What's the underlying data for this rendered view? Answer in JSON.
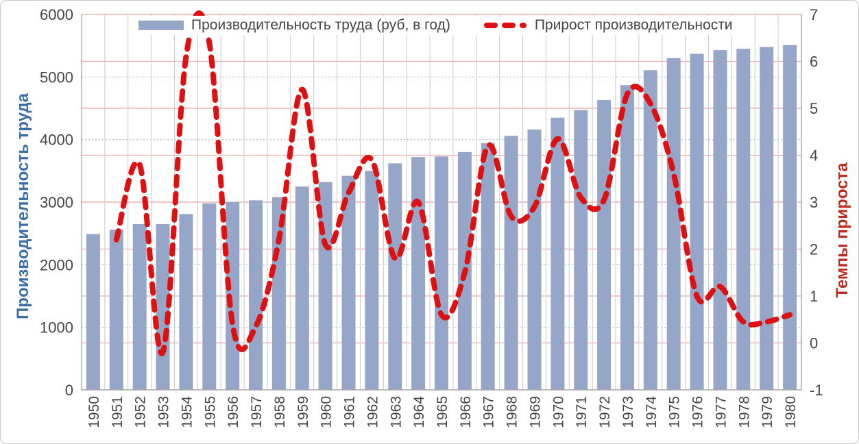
{
  "window": {
    "background": "#FFFFFF",
    "border_color": "#C9C9C9"
  },
  "chart_data": {
    "type": "combo-bar-line",
    "title": "",
    "categories": [
      "1950",
      "1951",
      "1952",
      "1953",
      "1954",
      "1955",
      "1956",
      "1957",
      "1958",
      "1959",
      "1960",
      "1961",
      "1962",
      "1963",
      "1964",
      "1965",
      "1966",
      "1967",
      "1968",
      "1969",
      "1970",
      "1971",
      "1972",
      "1973",
      "1974",
      "1975",
      "1976",
      "1977",
      "1978",
      "1979",
      "1980"
    ],
    "series": [
      {
        "name": "Производительность труда (руб, в год)",
        "type": "bar",
        "axis": "left",
        "color": "#96A6C8",
        "values": [
          2490,
          2560,
          2650,
          2650,
          2810,
          2980,
          3000,
          3030,
          3080,
          3250,
          3320,
          3420,
          3500,
          3620,
          3720,
          3730,
          3800,
          3940,
          4060,
          4160,
          4350,
          4470,
          4630,
          4870,
          5110,
          5300,
          5370,
          5430,
          5450,
          5480,
          5510
        ]
      },
      {
        "name": "Прирост производительности",
        "type": "line",
        "axis": "right",
        "color": "#DD1111",
        "dashed": true,
        "smooth": true,
        "values": [
          null,
          2.2,
          3.8,
          -0.2,
          6.1,
          6.4,
          0.4,
          0.35,
          2.2,
          5.4,
          2.1,
          3.2,
          3.9,
          1.8,
          3.0,
          0.6,
          1.5,
          4.2,
          2.7,
          2.9,
          4.35,
          3.1,
          3.05,
          5.3,
          5.1,
          3.6,
          1.0,
          1.2,
          0.45,
          0.45,
          0.6
        ]
      }
    ],
    "left_axis": {
      "title": "Производительность труда",
      "min": 0,
      "max": 6000,
      "step": 1000,
      "title_color": "#3C6EA5",
      "tick_color": "#454545"
    },
    "right_axis": {
      "title": "Темпы прироста",
      "min": -1,
      "max": 7,
      "step": 1,
      "title_color": "#C02B20",
      "tick_color": "#454545"
    },
    "x_axis": {
      "tick_color": "#454545",
      "label_rotation": -90
    },
    "grid": {
      "vertical_color": "#C9C9C9",
      "dotted_horizontal_color": "#A7B7DA",
      "red_horizontal_color": "#ECA8A8",
      "axis_line_color": "#A6A6A6"
    },
    "legend_position": "top"
  }
}
